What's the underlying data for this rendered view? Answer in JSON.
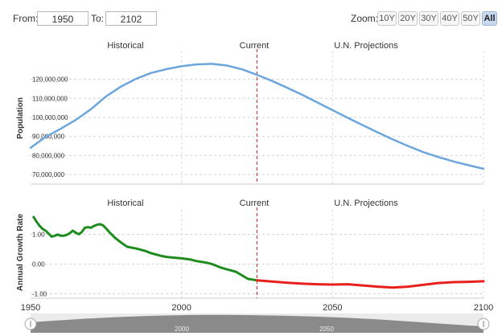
{
  "range": {
    "from_label": "From:",
    "from_value": "1950",
    "to_label": "To:",
    "to_value": "2102"
  },
  "zoom": {
    "label": "Zoom:",
    "buttons": [
      "10Y",
      "20Y",
      "30Y",
      "40Y",
      "50Y",
      "All"
    ],
    "active": "All"
  },
  "section_labels": {
    "historical": "Historical",
    "current": "Current",
    "projections": "U.N. Projections"
  },
  "colors": {
    "population_line": "#6ca6dc",
    "growth_historical": "#1e8c1e",
    "growth_projection": "#e8201c",
    "current_marker": "#d62728"
  },
  "navigator": {
    "ticks": [
      "2000",
      "2050"
    ]
  },
  "chart_data": [
    {
      "type": "line",
      "ylabel": "Population",
      "current_year": 2025,
      "xlim": [
        1950,
        2100
      ],
      "ylim": [
        65000000,
        135000000
      ],
      "yticks": [
        70000000,
        80000000,
        90000000,
        100000000,
        110000000,
        120000000
      ],
      "ytick_labels": [
        "70,000,000",
        "80,000,000",
        "90,000,000",
        "100,000,000",
        "110,000,000",
        "120,000,000"
      ],
      "series": [
        {
          "x": [
            1950,
            1955,
            1960,
            1965,
            1970,
            1975,
            1980,
            1985,
            1990,
            1995,
            2000,
            2005,
            2010,
            2015,
            2020,
            2025,
            2030,
            2035,
            2040,
            2045,
            2050,
            2055,
            2060,
            2065,
            2070,
            2075,
            2080,
            2085,
            2090,
            2095,
            2100
          ],
          "values": [
            84000000,
            89800000,
            94000000,
            98700000,
            104300000,
            111000000,
            116200000,
            120300000,
            123300000,
            125300000,
            126800000,
            127800000,
            128100000,
            127200000,
            125200000,
            122300000,
            119100000,
            115500000,
            111800000,
            107800000,
            103800000,
            99800000,
            95900000,
            92100000,
            88400000,
            85000000,
            81800000,
            79200000,
            76900000,
            74900000,
            73000000
          ]
        }
      ]
    },
    {
      "type": "line",
      "ylabel": "Annual Growth Rate",
      "current_year": 2025,
      "xlim": [
        1950,
        2100
      ],
      "ylim": [
        -1.15,
        1.85
      ],
      "yticks": [
        -1,
        0,
        1
      ],
      "ytick_labels": [
        "-1.00",
        "0.00",
        "1.00"
      ],
      "xticks": [
        1950,
        2000,
        2050,
        2100
      ],
      "xtick_labels": [
        "1950",
        "2000",
        "2050",
        "2100"
      ],
      "series": [
        {
          "x": [
            1951,
            1952,
            1953,
            1954,
            1955,
            1956,
            1957,
            1958,
            1959,
            1960,
            1961,
            1962,
            1963,
            1964,
            1965,
            1966,
            1967,
            1968,
            1969,
            1970,
            1971,
            1972,
            1973,
            1974,
            1975,
            1976,
            1977,
            1978,
            1980,
            1982,
            1985,
            1988,
            1990,
            1993,
            1995,
            1998,
            2000,
            2003,
            2005,
            2008,
            2010,
            2013,
            2015,
            2018,
            2020,
            2022,
            2025
          ],
          "values": [
            1.58,
            1.42,
            1.28,
            1.18,
            1.12,
            1.02,
            0.92,
            0.95,
            0.99,
            0.95,
            0.95,
            0.98,
            1.04,
            1.12,
            1.05,
            1.0,
            1.08,
            1.22,
            1.24,
            1.22,
            1.28,
            1.32,
            1.34,
            1.3,
            1.2,
            1.08,
            0.98,
            0.88,
            0.72,
            0.58,
            0.52,
            0.44,
            0.36,
            0.28,
            0.24,
            0.21,
            0.19,
            0.15,
            0.1,
            0.05,
            0.0,
            -0.12,
            -0.18,
            -0.26,
            -0.38,
            -0.5,
            -0.55
          ]
        },
        {
          "x": [
            2025,
            2030,
            2035,
            2040,
            2045,
            2050,
            2055,
            2060,
            2065,
            2070,
            2075,
            2080,
            2085,
            2090,
            2095,
            2100
          ],
          "values": [
            -0.55,
            -0.59,
            -0.63,
            -0.66,
            -0.68,
            -0.69,
            -0.68,
            -0.72,
            -0.76,
            -0.79,
            -0.76,
            -0.7,
            -0.64,
            -0.61,
            -0.6,
            -0.58
          ]
        }
      ]
    }
  ]
}
